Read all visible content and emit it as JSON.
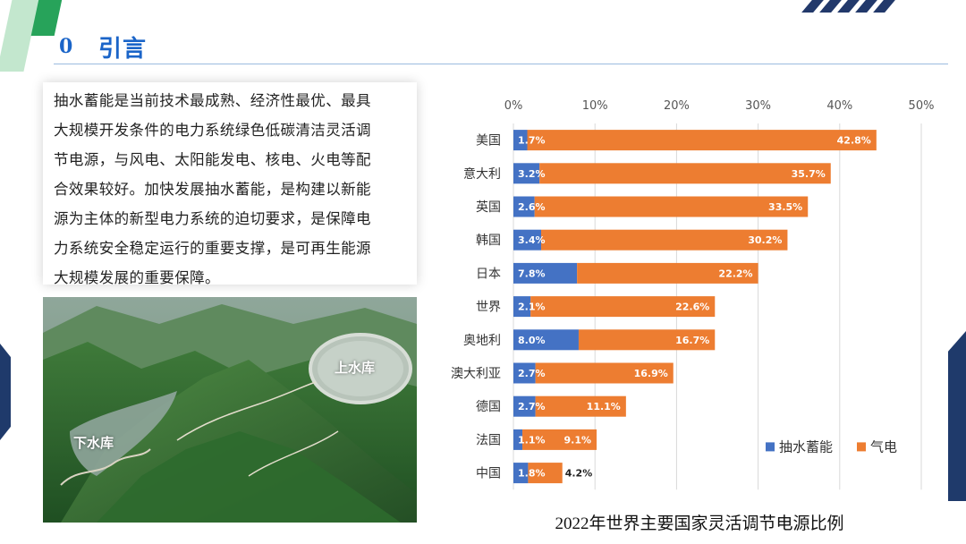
{
  "header": {
    "section_number": "0",
    "section_title": "引言"
  },
  "intro_text": "抽水蓄能是当前技术最成熟、经济性最优、最具大规模开发条件的电力系统绿色低碳清洁灵活调节电源，与风电、太阳能发电、核电、火电等配合效果较好。加快发展抽水蓄能，是构建以新能源为主体的新型电力系统的迫切要求，是保障电力系统安全稳定运行的重要支撑，是可再生能源大规模发展的重要保障。",
  "intro_lines": [
    "抽水蓄能是当前技术最成熟、经济性最优、最具",
    "大规模开发条件的电力系统绿色低碳清洁灵活调",
    "节电源，与风电、太阳能发电、核电、火电等配",
    "合效果较好。加快发展抽水蓄能，是构建以新能",
    "源为主体的新型电力系统的迫切要求，是保障电",
    "力系统安全稳定运行的重要支撑，是可再生能源",
    "大规模发展的重要保障。"
  ],
  "photo": {
    "label_upper": "上水库",
    "label_lower": "下水库"
  },
  "colors": {
    "accent": "#1a64c8",
    "pumped_storage": "#4472c4",
    "gas": "#ed7d31",
    "navy": "#1f3a6b",
    "green": "#27a35a"
  },
  "chart_data": {
    "type": "bar",
    "orientation": "horizontal",
    "stacked": true,
    "title": "2022年世界主要国家灵活调节电源比例",
    "xlim": [
      0,
      50
    ],
    "xticks": [
      "0%",
      "10%",
      "20%",
      "30%",
      "40%",
      "50%"
    ],
    "categories": [
      "美国",
      "意大利",
      "英国",
      "韩国",
      "日本",
      "世界",
      "奥地利",
      "澳大利亚",
      "德国",
      "法国",
      "中国"
    ],
    "series": [
      {
        "name": "抽水蓄能",
        "color": "#4472c4",
        "values": [
          1.7,
          3.2,
          2.6,
          3.4,
          7.8,
          2.1,
          8.0,
          2.7,
          2.7,
          1.1,
          1.8
        ],
        "labels": [
          "1.7%",
          "3.2%",
          "2.6%",
          "3.4%",
          "7.8%",
          "2.1%",
          "8.0%",
          "2.7%",
          "2.7%",
          "1.1%",
          "1.8%"
        ]
      },
      {
        "name": "气电",
        "color": "#ed7d31",
        "values": [
          42.8,
          35.7,
          33.5,
          30.2,
          22.2,
          22.6,
          16.7,
          16.9,
          11.1,
          9.1,
          4.2
        ],
        "labels": [
          "42.8%",
          "35.7%",
          "33.5%",
          "30.2%",
          "22.2%",
          "22.6%",
          "16.7%",
          "16.9%",
          "11.1%",
          "9.1%",
          "4.2%"
        ]
      }
    ],
    "grid": true,
    "legend": "bottom-right"
  }
}
